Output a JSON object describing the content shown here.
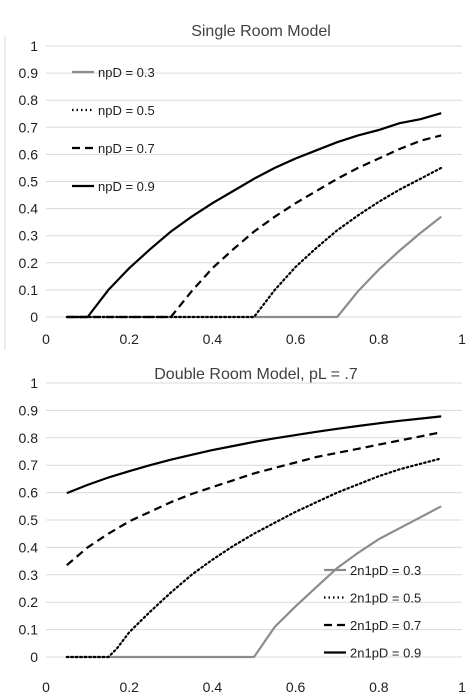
{
  "chart_data": [
    {
      "type": "line",
      "title": "Single Room Model",
      "xlabel": "",
      "ylabel": "",
      "xlim": [
        0,
        1
      ],
      "ylim": [
        0,
        1
      ],
      "xticks": [
        "0",
        "0.2",
        "0.4",
        "0.6",
        "0.8",
        "1"
      ],
      "yticks": [
        "0",
        "0.1",
        "0.2",
        "0.3",
        "0.4",
        "0.5",
        "0.6",
        "0.7",
        "0.8",
        "0.9",
        "1"
      ],
      "grid": "horizontal",
      "legend_position": "top-left",
      "series": [
        {
          "name": "npD = 0.3",
          "color": "#8c8c8c",
          "dash": "solid",
          "x": [
            0.05,
            0.1,
            0.2,
            0.3,
            0.4,
            0.5,
            0.6,
            0.7,
            0.75,
            0.8,
            0.85,
            0.9,
            0.95
          ],
          "y": [
            0,
            0,
            0,
            0,
            0,
            0,
            0,
            0,
            0.095,
            0.175,
            0.245,
            0.31,
            0.37
          ]
        },
        {
          "name": "npD = 0.5",
          "color": "#000000",
          "dash": "dotted",
          "x": [
            0.05,
            0.1,
            0.2,
            0.3,
            0.4,
            0.5,
            0.55,
            0.6,
            0.65,
            0.7,
            0.75,
            0.8,
            0.85,
            0.9,
            0.95
          ],
          "y": [
            0,
            0,
            0,
            0,
            0,
            0,
            0.1,
            0.185,
            0.255,
            0.32,
            0.375,
            0.425,
            0.47,
            0.51,
            0.55
          ]
        },
        {
          "name": "npD = 0.7",
          "color": "#000000",
          "dash": "dashed",
          "x": [
            0.05,
            0.1,
            0.2,
            0.3,
            0.35,
            0.4,
            0.45,
            0.5,
            0.55,
            0.6,
            0.65,
            0.7,
            0.75,
            0.8,
            0.85,
            0.9,
            0.95
          ],
          "y": [
            0,
            0,
            0,
            0,
            0.095,
            0.18,
            0.25,
            0.315,
            0.37,
            0.42,
            0.465,
            0.51,
            0.55,
            0.585,
            0.62,
            0.65,
            0.67
          ]
        },
        {
          "name": "npD = 0.9",
          "color": "#000000",
          "dash": "solid",
          "x": [
            0.05,
            0.1,
            0.15,
            0.2,
            0.25,
            0.3,
            0.35,
            0.4,
            0.45,
            0.5,
            0.55,
            0.6,
            0.65,
            0.7,
            0.75,
            0.8,
            0.85,
            0.9,
            0.95
          ],
          "y": [
            0,
            0,
            0.1,
            0.18,
            0.25,
            0.315,
            0.37,
            0.42,
            0.465,
            0.51,
            0.55,
            0.585,
            0.615,
            0.645,
            0.67,
            0.69,
            0.715,
            0.73,
            0.752
          ]
        }
      ]
    },
    {
      "type": "line",
      "title": "Double Room Model, pL = .7",
      "xlabel": "",
      "ylabel": "",
      "xlim": [
        0,
        1
      ],
      "ylim": [
        0,
        1
      ],
      "xticks": [
        "0",
        "0.2",
        "0.4",
        "0.6",
        "0.8",
        "1"
      ],
      "yticks": [
        "0",
        "0.1",
        "0.2",
        "0.3",
        "0.4",
        "0.5",
        "0.6",
        "0.7",
        "0.8",
        "0.9",
        "1"
      ],
      "grid": "horizontal",
      "legend_position": "bottom-right",
      "series": [
        {
          "name": "2n1pD = 0.3",
          "color": "#8c8c8c",
          "dash": "solid",
          "x": [
            0.05,
            0.1,
            0.2,
            0.3,
            0.4,
            0.5,
            0.55,
            0.6,
            0.65,
            0.7,
            0.75,
            0.8,
            0.85,
            0.9,
            0.95
          ],
          "y": [
            0,
            0,
            0,
            0,
            0,
            0,
            0.11,
            0.185,
            0.255,
            0.325,
            0.38,
            0.43,
            0.47,
            0.51,
            0.55
          ]
        },
        {
          "name": "2n1pD = 0.5",
          "color": "#000000",
          "dash": "dotted",
          "x": [
            0.05,
            0.1,
            0.15,
            0.17,
            0.2,
            0.25,
            0.3,
            0.35,
            0.4,
            0.45,
            0.5,
            0.55,
            0.6,
            0.65,
            0.7,
            0.75,
            0.8,
            0.85,
            0.9,
            0.95
          ],
          "y": [
            0,
            0,
            0,
            0.03,
            0.09,
            0.165,
            0.235,
            0.3,
            0.355,
            0.405,
            0.45,
            0.49,
            0.53,
            0.565,
            0.6,
            0.63,
            0.66,
            0.685,
            0.705,
            0.725
          ]
        },
        {
          "name": "2n1pD = 0.7",
          "color": "#000000",
          "dash": "dashed",
          "x": [
            0.05,
            0.1,
            0.15,
            0.2,
            0.25,
            0.3,
            0.35,
            0.4,
            0.45,
            0.5,
            0.55,
            0.6,
            0.65,
            0.7,
            0.75,
            0.8,
            0.85,
            0.9,
            0.95
          ],
          "y": [
            0.335,
            0.4,
            0.45,
            0.495,
            0.53,
            0.565,
            0.595,
            0.62,
            0.645,
            0.67,
            0.69,
            0.71,
            0.73,
            0.745,
            0.76,
            0.775,
            0.79,
            0.805,
            0.82
          ]
        },
        {
          "name": "2n1pD = 0.9",
          "color": "#000000",
          "dash": "solid",
          "x": [
            0.05,
            0.1,
            0.15,
            0.2,
            0.25,
            0.3,
            0.35,
            0.4,
            0.45,
            0.5,
            0.55,
            0.6,
            0.65,
            0.7,
            0.75,
            0.8,
            0.85,
            0.9,
            0.95
          ],
          "y": [
            0.598,
            0.628,
            0.655,
            0.678,
            0.7,
            0.72,
            0.738,
            0.755,
            0.77,
            0.785,
            0.798,
            0.81,
            0.822,
            0.833,
            0.843,
            0.853,
            0.862,
            0.87,
            0.878
          ]
        }
      ]
    }
  ]
}
